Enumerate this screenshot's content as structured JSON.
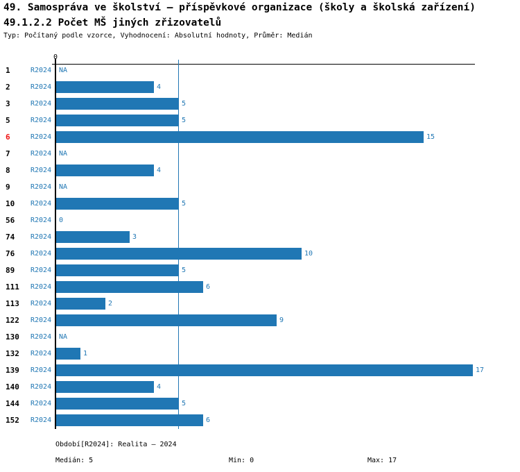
{
  "header": {
    "title_line1": "49. Samospráva ve školství – příspěvkové organizace (školy a školská zařízení)",
    "title_line2": "49.1.2.2 Počet MŠ jiných zřizovatelů",
    "subtitle": "Typ: Počítaný podle vzorce, Vyhodnocení: Absolutní hodnoty, Průměr: Medián"
  },
  "chart_data": {
    "type": "bar",
    "orientation": "horizontal",
    "series_label": "R2024",
    "categories": [
      "1",
      "2",
      "3",
      "5",
      "6",
      "7",
      "8",
      "9",
      "10",
      "56",
      "74",
      "76",
      "89",
      "111",
      "113",
      "122",
      "130",
      "132",
      "139",
      "140",
      "144",
      "152"
    ],
    "values": [
      null,
      4,
      5,
      5,
      15,
      null,
      4,
      null,
      5,
      0,
      3,
      10,
      5,
      6,
      2,
      9,
      null,
      1,
      17,
      4,
      5,
      6
    ],
    "value_labels": [
      "NA",
      "4",
      "5",
      "5",
      "15",
      "NA",
      "4",
      "NA",
      "5",
      "0",
      "3",
      "10",
      "5",
      "6",
      "2",
      "9",
      "NA",
      "1",
      "17",
      "4",
      "5",
      "6"
    ],
    "highlighted_category": "6",
    "axis": {
      "tick_label": "0",
      "min": 0,
      "max": 17
    },
    "median_line_value": 5,
    "grid": false,
    "legend": "none",
    "colors": {
      "bar": "#2077b4",
      "blue_text": "#2077b4",
      "highlight_red": "#ee1111",
      "axis": "#000000"
    }
  },
  "footer": {
    "period_label": "Období[R2024]: Realita – 2024",
    "median_label": "Medián: 5",
    "min_label": "Min: 0",
    "max_label": "Max: 17"
  }
}
